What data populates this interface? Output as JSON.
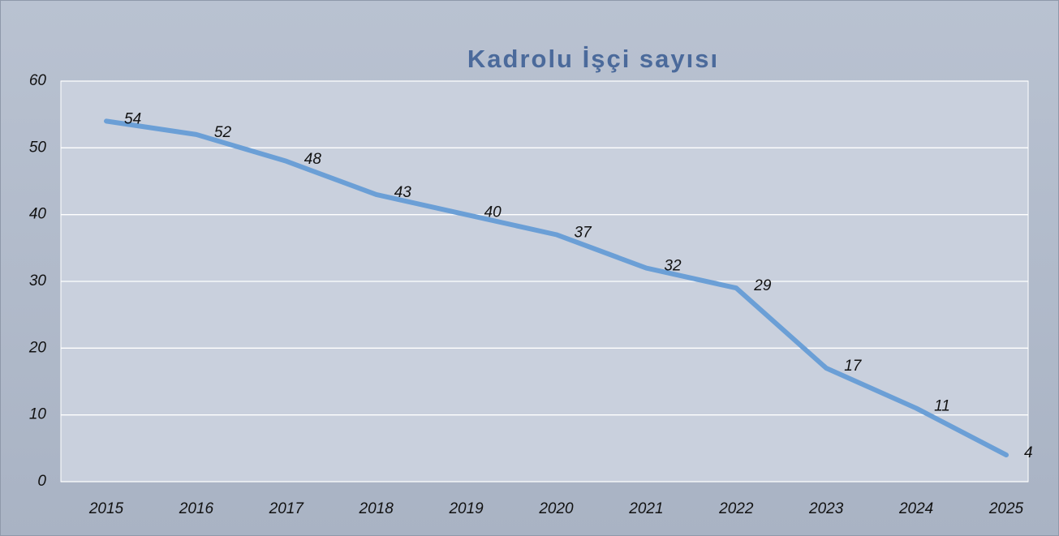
{
  "chart_data": {
    "type": "line",
    "title": "Kadrolu İşçi sayısı",
    "categories": [
      "2015",
      "2016",
      "2017",
      "2018",
      "2019",
      "2020",
      "2021",
      "2022",
      "2023",
      "2024",
      "2025"
    ],
    "values": [
      54,
      52,
      48,
      43,
      40,
      37,
      32,
      29,
      17,
      11,
      4
    ],
    "color": "#6b9fd6",
    "ylim": [
      0,
      60
    ],
    "yticks": [
      0,
      10,
      20,
      30,
      40,
      50,
      60
    ],
    "grid": true
  }
}
